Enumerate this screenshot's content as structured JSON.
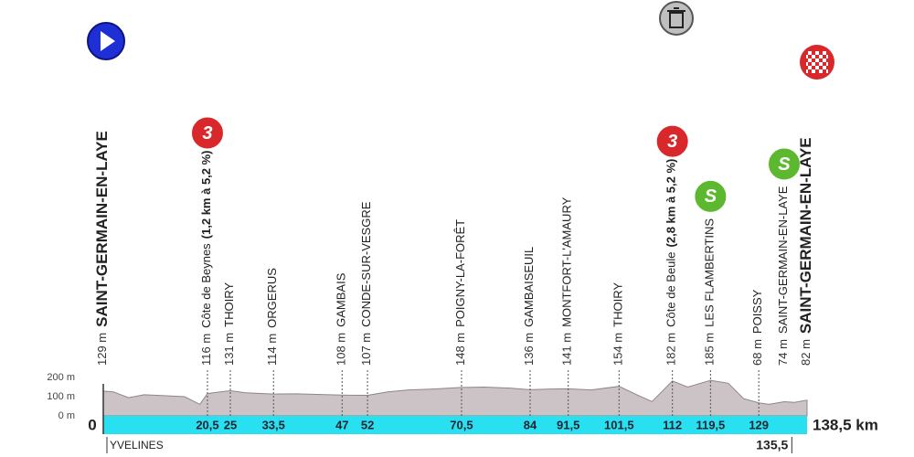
{
  "chart_data": {
    "type": "area",
    "x": [
      0,
      2,
      5,
      8,
      12,
      16,
      19,
      20.5,
      23,
      25,
      28,
      33.5,
      38,
      42,
      47,
      52,
      56,
      60,
      65,
      70.5,
      75,
      80,
      84,
      88,
      91.5,
      96,
      101.5,
      105,
      108,
      112,
      115,
      119.5,
      123,
      126,
      129,
      131,
      134,
      136,
      138.5
    ],
    "values": [
      129,
      125,
      95,
      110,
      105,
      100,
      60,
      116,
      125,
      131,
      120,
      114,
      115,
      112,
      108,
      107,
      125,
      135,
      140,
      148,
      150,
      145,
      136,
      140,
      141,
      135,
      154,
      110,
      75,
      182,
      150,
      185,
      170,
      90,
      68,
      60,
      74,
      70,
      82
    ],
    "color": "#cbc3c6",
    "bar_color": "#29e0f0",
    "xlim": [
      0,
      138.5
    ],
    "xticks": [
      0,
      {
        "value": 138.5,
        "label": "138,5 km"
      }
    ],
    "ylim": [
      0,
      200
    ],
    "yticks": [
      {
        "value": 0,
        "label": "0 m"
      },
      {
        "value": 100,
        "label": "100 m"
      },
      {
        "value": 200,
        "label": "200 m"
      }
    ],
    "region": "YVELINES",
    "boundary": {
      "value": 135.5,
      "label": "135,5"
    },
    "waypoints": [
      {
        "km": 0,
        "altitude": {
          "value": 129,
          "label": "129 m"
        },
        "name": "SAINT-GERMAIN-EN-LAYE",
        "bold": true
      },
      {
        "km": {
          "value": 20.5,
          "label": "20,5"
        },
        "altitude": {
          "value": 116,
          "label": "116 m"
        },
        "name": "Côte de Beynes",
        "note": "(1,2 km à 5,2 %)",
        "icon": "3"
      },
      {
        "km": 25,
        "altitude": {
          "value": 131,
          "label": "131 m"
        },
        "name": "THOIRY"
      },
      {
        "km": {
          "value": 33.5,
          "label": "33,5"
        },
        "altitude": {
          "value": 114,
          "label": "114 m"
        },
        "name": "ORGERUS"
      },
      {
        "km": 47,
        "altitude": {
          "value": 108,
          "label": "108 m"
        },
        "name": "GAMBAIS"
      },
      {
        "km": 52,
        "altitude": {
          "value": 107,
          "label": "107 m"
        },
        "name": "CONDE-SUR-VESGRE"
      },
      {
        "km": {
          "value": 70.5,
          "label": "70,5"
        },
        "altitude": {
          "value": 148,
          "label": "148 m"
        },
        "name": "POIGNY-LA-FORÊT"
      },
      {
        "km": 84,
        "altitude": {
          "value": 136,
          "label": "136 m"
        },
        "name": "GAMBAISEUIL"
      },
      {
        "km": {
          "value": 91.5,
          "label": "91,5"
        },
        "altitude": {
          "value": 141,
          "label": "141 m"
        },
        "name": "MONTFORT-L'AMAURY"
      },
      {
        "km": {
          "value": 101.5,
          "label": "101,5"
        },
        "altitude": {
          "value": 154,
          "label": "154 m"
        },
        "name": "THOIRY"
      },
      {
        "km": 112,
        "altitude": {
          "value": 182,
          "label": "182 m"
        },
        "name": "Côte de Beule",
        "note": "(2,8 km à 5,2 %)",
        "icon": "3"
      },
      {
        "km": {
          "value": 119.5,
          "label": "119,5"
        },
        "altitude": {
          "value": 185,
          "label": "185 m"
        },
        "name": "LES FLAMBERTINS",
        "icon": "S"
      },
      {
        "km": 129,
        "altitude": {
          "value": 68,
          "label": "68 m"
        },
        "name": "POISSY"
      },
      {
        "km": 134,
        "altitude": {
          "value": 74,
          "label": "74 m"
        },
        "name": "SAINT-GERMAIN-EN-LAYE",
        "icon": "S"
      },
      {
        "km": 138.5,
        "altitude": {
          "value": 82,
          "label": "82 m"
        },
        "name": "SAINT-GERMAIN-EN-LAYE",
        "bold": true
      }
    ]
  }
}
